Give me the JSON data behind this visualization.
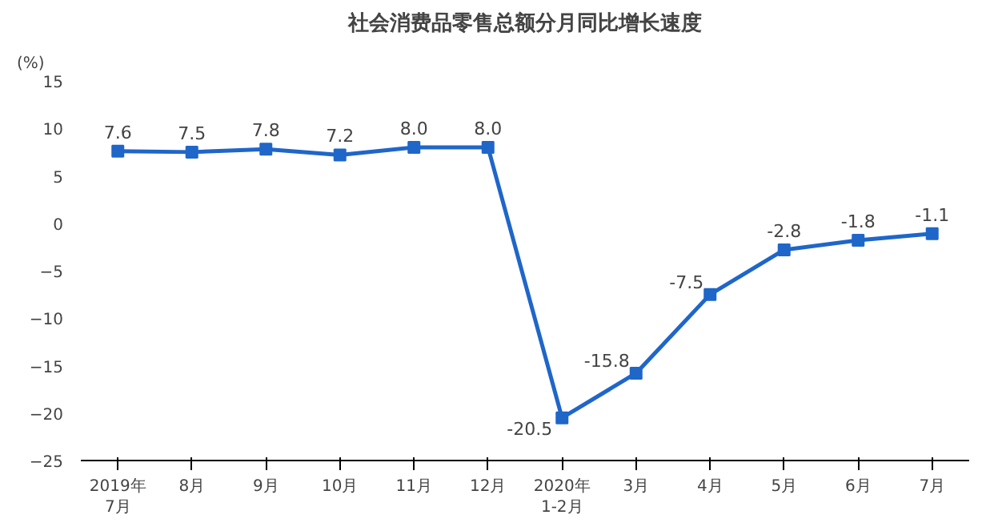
{
  "chart_data": {
    "type": "line",
    "title": "社会消费品零售总额分月同比增长速度",
    "ylabel": "(%)",
    "categories": [
      "2019年\n7月",
      "8月",
      "9月",
      "10月",
      "11月",
      "12月",
      "2020年\n1-2月",
      "3月",
      "4月",
      "5月",
      "6月",
      "7月"
    ],
    "series": [
      {
        "color": "#1f66c9",
        "values": [
          7.6,
          7.5,
          7.8,
          7.2,
          8.0,
          8.0,
          -20.5,
          -15.8,
          -7.5,
          -2.8,
          -1.8,
          -1.1
        ],
        "value_labels": [
          "7.6",
          "7.5",
          "7.8",
          "7.2",
          "8.0",
          "8.0",
          "-20.5",
          "-15.8",
          "-7.5",
          "-2.8",
          "-1.8",
          "-1.1"
        ]
      }
    ],
    "ylim": [
      -25,
      15
    ],
    "yticks": [
      -25,
      -20,
      -15,
      -10,
      -5,
      0,
      5,
      10,
      15
    ],
    "marker": "square",
    "line_style": "solid",
    "grid": false
  }
}
